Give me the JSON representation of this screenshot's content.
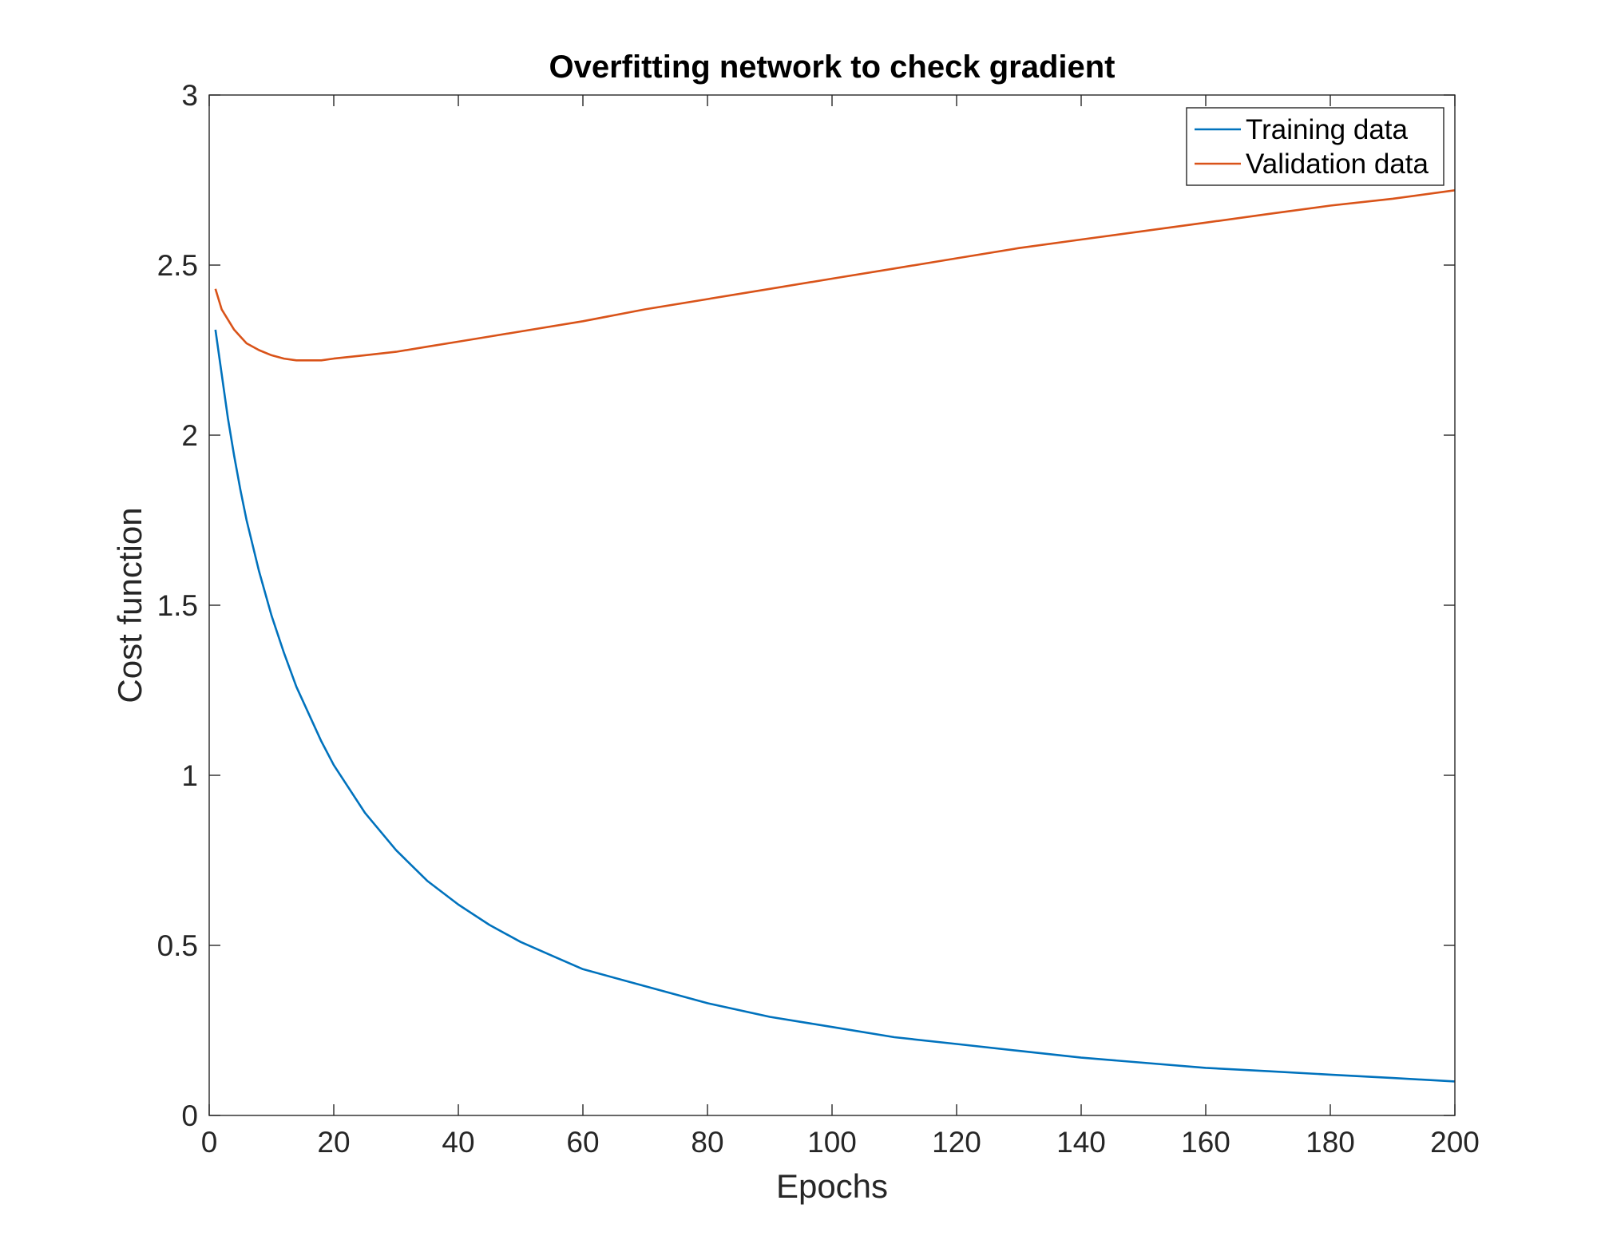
{
  "chart_data": {
    "type": "line",
    "title": "Overfitting network to check gradient",
    "xlabel": "Epochs",
    "ylabel": "Cost function",
    "xlim": [
      0,
      200
    ],
    "ylim": [
      0,
      3
    ],
    "xticks": [
      0,
      20,
      40,
      60,
      80,
      100,
      120,
      140,
      160,
      180,
      200
    ],
    "yticks": [
      0,
      0.5,
      1,
      1.5,
      2,
      2.5,
      3
    ],
    "grid": false,
    "legend": {
      "position": "top-right"
    },
    "series": [
      {
        "name": "Training data",
        "color": "#0072BD",
        "x": [
          1,
          2,
          3,
          4,
          5,
          6,
          8,
          10,
          12,
          14,
          16,
          18,
          20,
          25,
          30,
          35,
          40,
          45,
          50,
          55,
          60,
          70,
          80,
          90,
          100,
          110,
          120,
          130,
          140,
          150,
          160,
          170,
          180,
          190,
          200
        ],
        "y": [
          2.31,
          2.18,
          2.05,
          1.94,
          1.84,
          1.75,
          1.6,
          1.47,
          1.36,
          1.26,
          1.18,
          1.1,
          1.03,
          0.89,
          0.78,
          0.69,
          0.62,
          0.56,
          0.51,
          0.47,
          0.43,
          0.38,
          0.33,
          0.29,
          0.26,
          0.23,
          0.21,
          0.19,
          0.17,
          0.155,
          0.14,
          0.13,
          0.12,
          0.11,
          0.1
        ]
      },
      {
        "name": "Validation data",
        "color": "#D95319",
        "x": [
          1,
          2,
          3,
          4,
          5,
          6,
          8,
          10,
          12,
          14,
          16,
          18,
          20,
          25,
          30,
          35,
          40,
          45,
          50,
          60,
          70,
          80,
          90,
          100,
          110,
          120,
          130,
          140,
          150,
          160,
          170,
          180,
          190,
          200
        ],
        "y": [
          2.43,
          2.37,
          2.34,
          2.31,
          2.29,
          2.27,
          2.25,
          2.235,
          2.225,
          2.22,
          2.22,
          2.22,
          2.225,
          2.235,
          2.245,
          2.26,
          2.275,
          2.29,
          2.305,
          2.335,
          2.37,
          2.4,
          2.43,
          2.46,
          2.49,
          2.52,
          2.55,
          2.575,
          2.6,
          2.625,
          2.65,
          2.675,
          2.695,
          2.72
        ]
      }
    ]
  }
}
